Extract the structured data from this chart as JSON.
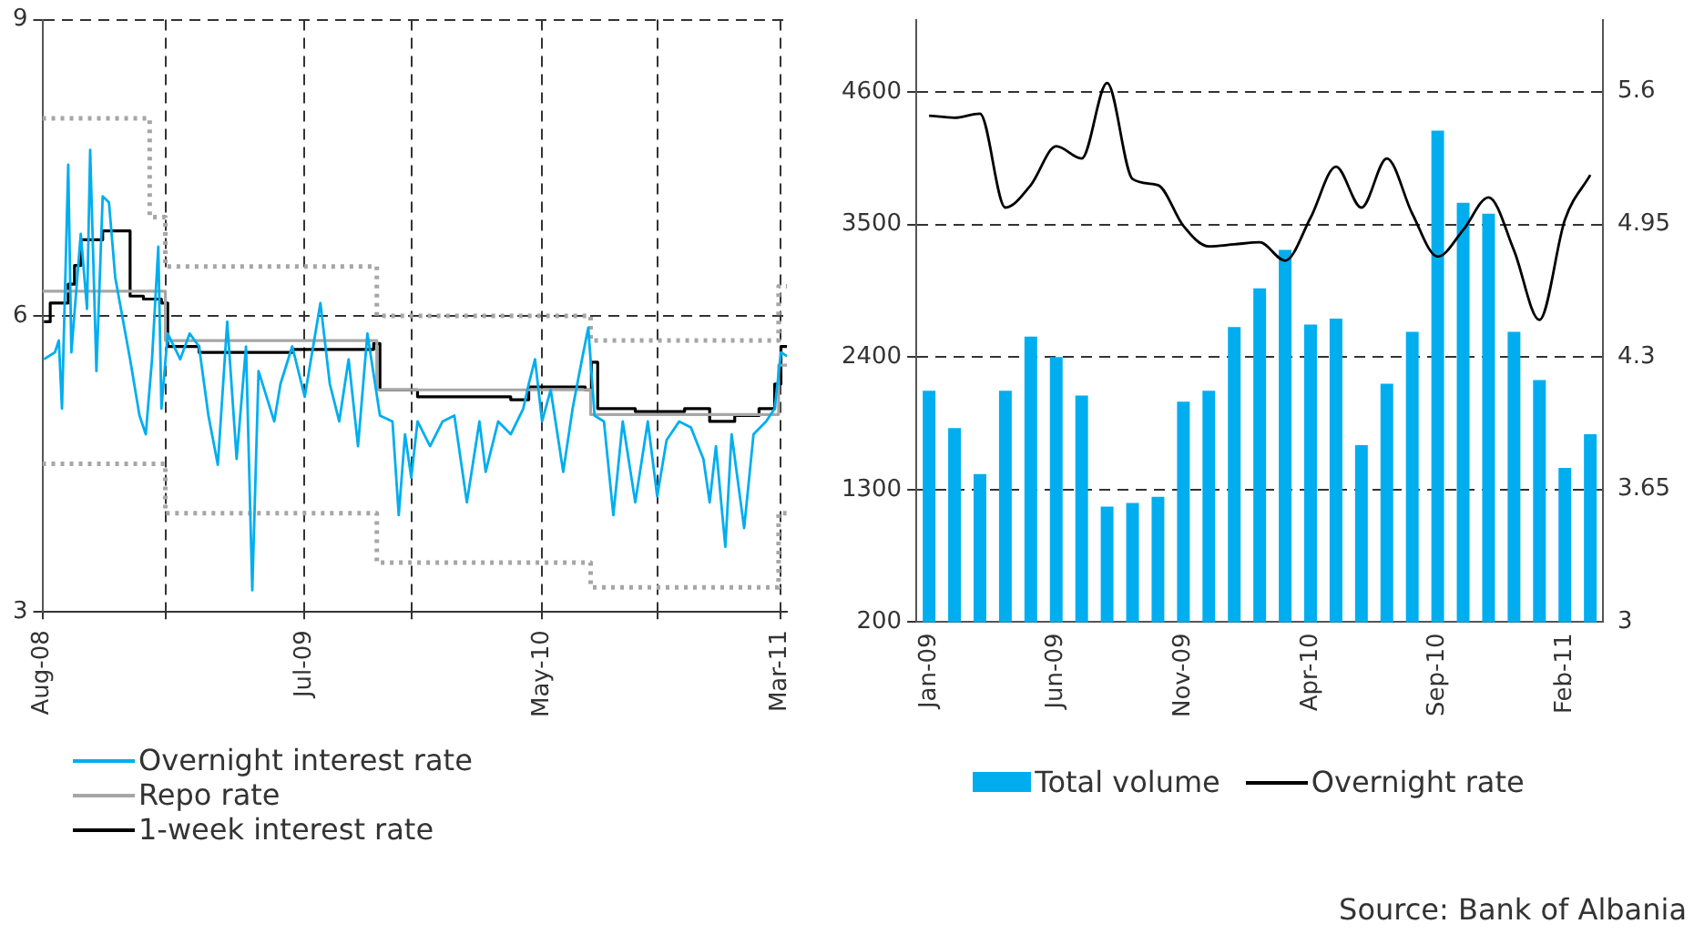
{
  "chart_data": [
    {
      "type": "line",
      "series": [
        {
          "name": "Overnight interest rate",
          "color": "#00aeef",
          "x": [
            "2008-08-03",
            "2008-08-17",
            "2008-08-22",
            "2008-08-26",
            "2008-09-03",
            "2008-09-07",
            "2008-09-19",
            "2008-09-27",
            "2008-10-01",
            "2008-10-09",
            "2008-10-17",
            "2008-10-25",
            "2008-11-02",
            "2008-11-21",
            "2008-12-03",
            "2008-12-11",
            "2008-12-19",
            "2008-12-27",
            "2008-12-31",
            "2009-01-08",
            "2009-01-24",
            "2009-02-05",
            "2009-02-17",
            "2009-03-01",
            "2009-03-13",
            "2009-03-25",
            "2009-04-06",
            "2009-04-18",
            "2009-04-26",
            "2009-05-04",
            "2009-05-24",
            "2009-06-01",
            "2009-06-16",
            "2009-07-02",
            "2009-07-22",
            "2009-08-03",
            "2009-08-15",
            "2009-08-27",
            "2009-09-08",
            "2009-09-20",
            "2009-10-06",
            "2009-10-22",
            "2009-10-30",
            "2009-11-07",
            "2009-11-15",
            "2009-11-23",
            "2009-12-09",
            "2009-12-25",
            "2010-01-09",
            "2010-01-25",
            "2010-02-10",
            "2010-02-18",
            "2010-03-06",
            "2010-03-22",
            "2010-04-07",
            "2010-04-14",
            "2010-04-22",
            "2010-05-01",
            "2010-05-12",
            "2010-05-28",
            "2010-06-09",
            "2010-06-21",
            "2010-06-29",
            "2010-07-07",
            "2010-07-19",
            "2010-07-31",
            "2010-08-12",
            "2010-08-28",
            "2010-09-13",
            "2010-09-25",
            "2010-10-07",
            "2010-10-23",
            "2010-11-07",
            "2010-11-23",
            "2010-12-01",
            "2010-12-09",
            "2010-12-21",
            "2010-12-29",
            "2011-01-14",
            "2011-01-26",
            "2011-02-11",
            "2011-02-22",
            "2011-03-02",
            "2011-03-10"
          ],
          "values": [
            5.56,
            5.63,
            5.75,
            5.06,
            7.53,
            5.63,
            6.83,
            6.07,
            7.68,
            5.44,
            7.21,
            7.15,
            6.39,
            5.56,
            4.99,
            4.8,
            5.56,
            6.7,
            5.06,
            5.82,
            5.56,
            5.82,
            5.69,
            4.99,
            4.49,
            5.94,
            4.55,
            5.69,
            3.22,
            5.44,
            4.93,
            5.31,
            5.69,
            5.18,
            6.13,
            5.31,
            4.93,
            5.56,
            4.68,
            5.82,
            4.99,
            4.93,
            3.98,
            4.8,
            4.36,
            4.93,
            4.68,
            4.93,
            4.99,
            4.11,
            4.93,
            4.42,
            4.93,
            4.8,
            5.06,
            5.31,
            5.56,
            4.93,
            5.25,
            4.42,
            5.06,
            5.56,
            5.88,
            4.99,
            4.93,
            3.98,
            4.93,
            4.11,
            4.93,
            4.17,
            4.74,
            4.93,
            4.87,
            4.55,
            4.11,
            4.68,
            3.66,
            4.8,
            3.85,
            4.8,
            4.93,
            5.06,
            5.63,
            5.59
          ]
        },
        {
          "name": "Repo rate",
          "type": "step",
          "color": "#a6a6a6",
          "x": [
            "2008-08-01",
            "2009-01-05",
            "2009-10-02",
            "2010-07-02",
            "2011-02-27",
            "2011-03-10"
          ],
          "values": [
            6.25,
            5.75,
            5.25,
            5.0,
            5.5,
            5.5
          ]
        },
        {
          "name": "1-week interest rate",
          "type": "step",
          "color": "#000000",
          "x": [
            "2008-08-03",
            "2008-08-11",
            "2008-08-26",
            "2008-09-03",
            "2008-09-11",
            "2008-09-19",
            "2008-10-17",
            "2008-11-18",
            "2008-11-21",
            "2008-12-08",
            "2008-12-31",
            "2009-01-08",
            "2009-02-17",
            "2009-03-29",
            "2009-06-16",
            "2009-09-28",
            "2009-10-06",
            "2009-11-23",
            "2010-03-22",
            "2010-04-14",
            "2010-06-25",
            "2010-07-03",
            "2010-07-11",
            "2010-08-28",
            "2010-10-30",
            "2010-12-01",
            "2011-01-02",
            "2011-02-02",
            "2011-02-22",
            "2011-03-02",
            "2011-03-10"
          ],
          "values": [
            5.94,
            6.13,
            6.13,
            6.32,
            6.51,
            6.77,
            6.86,
            6.86,
            6.2,
            6.17,
            6.13,
            5.69,
            5.63,
            5.63,
            5.66,
            5.72,
            5.25,
            5.18,
            5.15,
            5.28,
            5.25,
            5.53,
            5.06,
            5.03,
            5.06,
            4.93,
            4.99,
            5.06,
            5.31,
            5.69,
            5.69
          ]
        },
        {
          "type": "step",
          "color": "#a6a6a6",
          "line_style": "dotted",
          "x": [
            "2008-08-01",
            "2008-12-16",
            "2009-01-05",
            "2009-10-02",
            "2010-07-02",
            "2011-02-27",
            "2011-03-10"
          ],
          "values": [
            8.0,
            7.0,
            6.5,
            6.0,
            5.75,
            6.3,
            6.3
          ]
        },
        {
          "type": "step",
          "color": "#a6a6a6",
          "line_style": "dotted",
          "x": [
            "2008-08-01",
            "2009-01-05",
            "2009-10-02",
            "2010-07-02",
            "2011-02-27",
            "2011-03-10"
          ],
          "values": [
            4.5,
            4.0,
            3.5,
            3.25,
            4.0,
            4.0
          ]
        }
      ],
      "xlim": [
        "2008-08-01",
        "2011-03-10"
      ],
      "xticks": [
        {
          "value": "2008-08-01",
          "label": "Aug-08"
        },
        {
          "value": "2009-01-05",
          "label": null
        },
        {
          "value": "2009-07-01",
          "label": "Jul-09"
        },
        {
          "value": "2009-11-15",
          "label": null
        },
        {
          "value": "2010-05-01",
          "label": "May-10"
        },
        {
          "value": "2010-09-25",
          "label": null
        },
        {
          "value": "2011-03-01",
          "label": "Mar-11"
        }
      ],
      "ylim": [
        3,
        9
      ],
      "yticks": [
        3,
        6,
        9
      ],
      "grid": true,
      "legend": "bottom left",
      "marker": "none"
    },
    {
      "type": "bar",
      "categories": [
        "Jan-09",
        null,
        null,
        null,
        null,
        "Jun-09",
        null,
        null,
        null,
        null,
        "Nov-09",
        null,
        null,
        null,
        null,
        "Apr-10",
        null,
        null,
        null,
        null,
        "Sep-10",
        null,
        null,
        null,
        null,
        "Feb-11",
        null
      ],
      "series": [
        {
          "name": "Total volume",
          "color": "#00aeef",
          "values": [
            2120,
            1810,
            1430,
            2120,
            2570,
            2400,
            2080,
            1160,
            1190,
            1240,
            2030,
            2120,
            2650,
            2970,
            3290,
            2670,
            2720,
            1670,
            2180,
            2610,
            4280,
            3680,
            3590,
            2610,
            2210,
            1480,
            1760
          ]
        },
        {
          "name": "Overnight rate",
          "type": "line",
          "axis": "y2",
          "color": "#000000",
          "values": [
            5.48,
            5.47,
            5.49,
            5.03,
            5.14,
            5.33,
            5.27,
            5.64,
            5.17,
            5.14,
            4.94,
            4.84,
            4.85,
            4.86,
            4.77,
            4.98,
            5.23,
            5.03,
            5.27,
            5.0,
            4.79,
            4.92,
            5.08,
            4.82,
            4.48,
            4.97,
            5.19
          ]
        }
      ],
      "ylim": [
        200,
        5200
      ],
      "yticks": [
        200,
        1300,
        2400,
        3500,
        4600
      ],
      "y2lim": [
        3,
        5.95
      ],
      "y2ticks": [
        3,
        3.65,
        4.3,
        4.95,
        5.6
      ],
      "grid": "y",
      "legend": "bottom",
      "marker": "none",
      "annotations": [
        "Source: Bank of Albania"
      ]
    }
  ]
}
